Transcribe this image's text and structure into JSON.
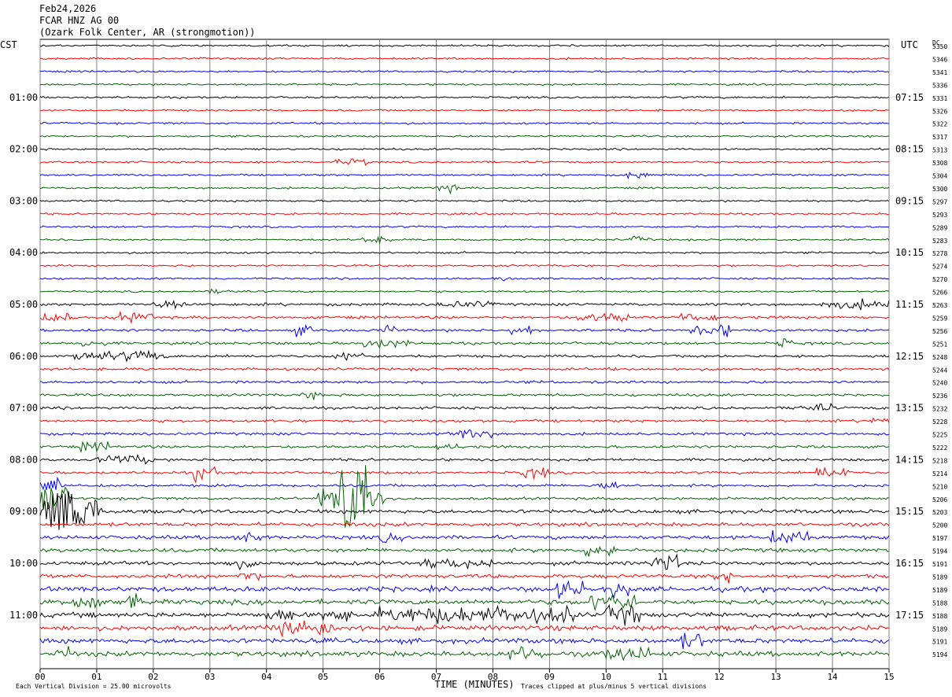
{
  "header": {
    "date": "Feb24,2026",
    "station": "FCAR HNZ AG 00",
    "location": "(Ozark Folk Center, AR (strongmotion))"
  },
  "chart_data": {
    "type": "line",
    "title": "FCAR HNZ AG 00",
    "left_timezone": "CST",
    "right_timezone": "UTC",
    "dc_label": "DC",
    "xlabel": "TIME (MINUTES)",
    "xlim": [
      0,
      15
    ],
    "x_ticks": [
      "00",
      "01",
      "02",
      "03",
      "04",
      "05",
      "06",
      "07",
      "08",
      "09",
      "10",
      "11",
      "12",
      "13",
      "14",
      "15"
    ],
    "left_time_labels": [
      "01:00",
      "02:00",
      "03:00",
      "04:00",
      "05:00",
      "06:00",
      "07:00",
      "08:00",
      "09:00",
      "10:00",
      "11:00"
    ],
    "right_time_labels": [
      "07:15",
      "08:15",
      "09:15",
      "10:15",
      "11:15",
      "12:15",
      "13:15",
      "14:15",
      "15:15",
      "16:15",
      "17:15"
    ],
    "trace_colors": [
      "#000000",
      "#ff0000",
      "#0000ff",
      "#006400"
    ],
    "dc_offsets": [
      "5350",
      "5346",
      "5341",
      "5336",
      "5331",
      "5326",
      "5322",
      "5317",
      "5313",
      "5308",
      "5304",
      "5300",
      "5297",
      "5293",
      "5289",
      "5283",
      "5278",
      "5274",
      "5270",
      "5266",
      "5263",
      "5259",
      "5256",
      "5251",
      "5248",
      "5244",
      "5240",
      "5236",
      "5232",
      "5228",
      "5225",
      "5222",
      "5218",
      "5214",
      "5210",
      "5206",
      "5203",
      "5200",
      "5197",
      "5194",
      "5191",
      "5189",
      "5189",
      "5188",
      "5188",
      "5189",
      "5191",
      "5194"
    ],
    "grid": true,
    "legend": false,
    "footer": {
      "scale_note": "Each Vertical Division =   25.00 microvolts",
      "clip_note": "Traces clipped at plus/minus 5 vertical divisions"
    }
  }
}
